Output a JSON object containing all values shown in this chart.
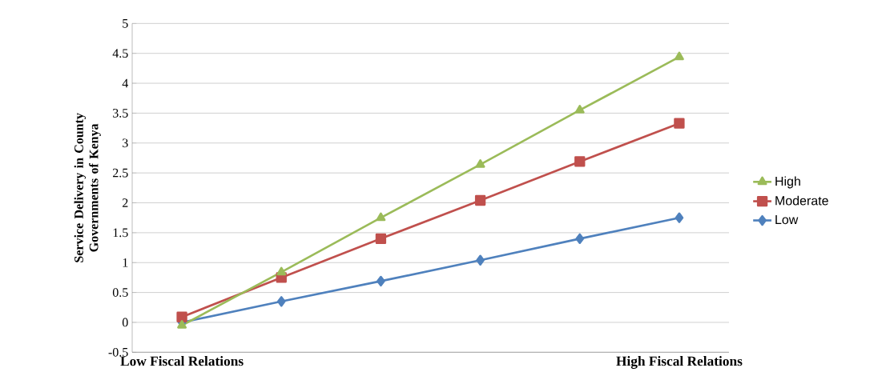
{
  "chart_data": {
    "type": "line",
    "ylabel": "Service Delivery in County Governments of Kenya",
    "categories": [
      "Low Fiscal Relations",
      null,
      null,
      null,
      null,
      "High Fiscal Relations"
    ],
    "series": [
      {
        "name": "High",
        "color": "#9bbb59",
        "marker": "triangle",
        "values": [
          -0.05,
          0.84,
          1.75,
          2.64,
          3.55,
          4.44
        ]
      },
      {
        "name": "Moderate",
        "color": "#c0504d",
        "marker": "square",
        "values": [
          0.09,
          0.75,
          1.4,
          2.04,
          2.69,
          3.33
        ]
      },
      {
        "name": "Low",
        "color": "#4f81bd",
        "marker": "diamond",
        "values": [
          0,
          0.35,
          0.69,
          1.04,
          1.4,
          1.75
        ]
      }
    ],
    "ylim": [
      -0.5,
      5
    ],
    "yticks": [
      -0.5,
      0,
      0.5,
      1,
      1.5,
      2,
      2.5,
      3,
      3.5,
      4,
      4.5,
      5
    ],
    "grid": "y",
    "legend": "right",
    "line_style": "solid"
  }
}
